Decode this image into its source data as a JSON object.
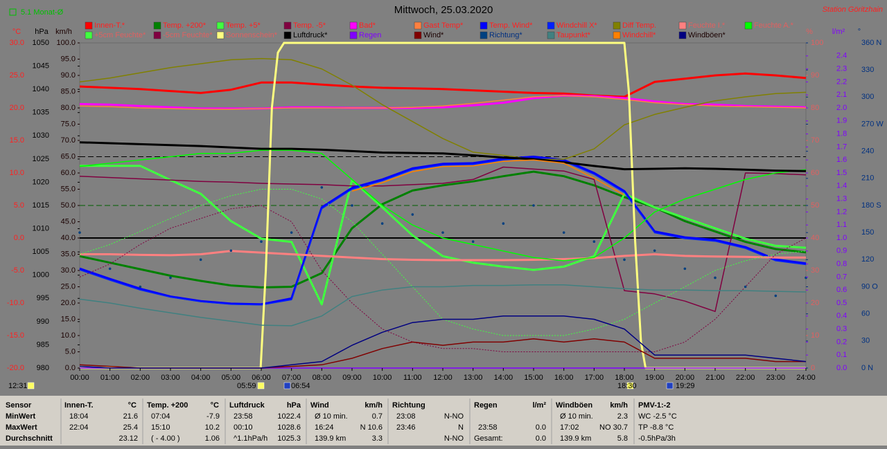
{
  "chart_data": {
    "type": "line",
    "title": "Mittwoch, 25.03.2020",
    "station": "Station Göritzhain",
    "period": "5.1 Monat-Ø",
    "x": [
      0,
      1,
      2,
      3,
      4,
      5,
      6,
      7,
      8,
      9,
      10,
      11,
      12,
      13,
      14,
      15,
      16,
      17,
      18,
      19,
      20,
      21,
      22,
      23,
      24
    ],
    "xlim": [
      0,
      24
    ],
    "xticks": [
      {
        "value": 0,
        "label": "00:00"
      },
      {
        "value": 1,
        "label": "01:00"
      },
      {
        "value": 2,
        "label": "02:00"
      },
      {
        "value": 3,
        "label": "03:00"
      },
      {
        "value": 4,
        "label": "04:00"
      },
      {
        "value": 5,
        "label": "05:00"
      },
      {
        "value": 6,
        "label": "06:00"
      },
      {
        "value": 7,
        "label": "07:00"
      },
      {
        "value": 8,
        "label": "08:00"
      },
      {
        "value": 9,
        "label": "09:00"
      },
      {
        "value": 10,
        "label": "10:00"
      },
      {
        "value": 11,
        "label": "11:00"
      },
      {
        "value": 12,
        "label": "12:00"
      },
      {
        "value": 13,
        "label": "13:00"
      },
      {
        "value": 14,
        "label": "14:00"
      },
      {
        "value": 15,
        "label": "15:00"
      },
      {
        "value": 16,
        "label": "16:00"
      },
      {
        "value": 17,
        "label": "17:00"
      },
      {
        "value": 18,
        "label": "18:00"
      },
      {
        "value": 19,
        "label": "19:00"
      },
      {
        "value": 20,
        "label": "20:00"
      },
      {
        "value": 21,
        "label": "21:00"
      },
      {
        "value": 22,
        "label": "22:00"
      },
      {
        "value": 23,
        "label": "23:00"
      },
      {
        "value": 24,
        "label": "24:00"
      }
    ],
    "axes": [
      {
        "unit": "°C",
        "color": "#ff2020",
        "lim": [
          -20,
          30
        ],
        "ticks": [
          {
            "value": 30,
            "label": "30.0"
          },
          {
            "value": 25,
            "label": "25.0"
          },
          {
            "value": 20,
            "label": "20.0"
          },
          {
            "value": 15,
            "label": "15.0"
          },
          {
            "value": 10,
            "label": "10.0"
          },
          {
            "value": 5,
            "label": "5.0"
          },
          {
            "value": 0,
            "label": "0.0"
          },
          {
            "value": -5,
            "label": "-5.0"
          },
          {
            "value": -10,
            "label": "-10.0"
          },
          {
            "value": -15,
            "label": "-15.0"
          },
          {
            "value": -20,
            "label": "-20.0"
          }
        ]
      },
      {
        "unit": "hPa",
        "color": "#000000",
        "lim": [
          980,
          1050
        ],
        "ticks": [
          1050,
          1045,
          1040,
          1035,
          1030,
          1025,
          1020,
          1015,
          1010,
          1005,
          1000,
          995,
          990,
          985,
          980
        ]
      },
      {
        "unit": "km/h",
        "color": "#1a0000",
        "lim": [
          0,
          100
        ],
        "ticks": [
          {
            "value": 100,
            "label": "100.0"
          },
          {
            "value": 95,
            "label": "95.0"
          },
          {
            "value": 90,
            "label": "90.0"
          },
          {
            "value": 85,
            "label": "85.0"
          },
          {
            "value": 80,
            "label": "80.0"
          },
          {
            "value": 75,
            "label": "75.0"
          },
          {
            "value": 70,
            "label": "70.0"
          },
          {
            "value": 65,
            "label": "65.0"
          },
          {
            "value": 60,
            "label": "60.0"
          },
          {
            "value": 55,
            "label": "55.0"
          },
          {
            "value": 50,
            "label": "50.0"
          },
          {
            "value": 45,
            "label": "45.0"
          },
          {
            "value": 40,
            "label": "40.0"
          },
          {
            "value": 35,
            "label": "35.0"
          },
          {
            "value": 30,
            "label": "30.0"
          },
          {
            "value": 25,
            "label": "25.0"
          },
          {
            "value": 20,
            "label": "20.0"
          },
          {
            "value": 15,
            "label": "15.0"
          },
          {
            "value": 10,
            "label": "10.0"
          },
          {
            "value": 5,
            "label": "5.0"
          },
          {
            "value": 0,
            "label": "0.0"
          }
        ]
      },
      {
        "unit": "%",
        "color": "#e06060",
        "lim": [
          0,
          100
        ],
        "ticks": [
          100,
          90,
          80,
          70,
          60,
          50,
          40,
          30,
          20,
          10,
          0
        ]
      },
      {
        "unit": "l/m²",
        "color": "#8000ff",
        "lim": [
          0,
          2.5
        ],
        "ticks": [
          2.4,
          2.3,
          2.2,
          2.1,
          {
            "value": 2,
            "label": "2.0"
          },
          1.9,
          1.8,
          1.7,
          1.6,
          1.5,
          1.4,
          1.3,
          1.2,
          1.1,
          {
            "value": 1,
            "label": "1.0"
          },
          0.9,
          0.8,
          0.7,
          0.6,
          0.5,
          0.4,
          0.3,
          0.2,
          0.1,
          {
            "value": 0,
            "label": "0.0"
          }
        ]
      },
      {
        "unit": "°",
        "color": "#003080",
        "lim": [
          0,
          360
        ],
        "ticks": [
          {
            "value": 360,
            "label": "360 N"
          },
          330,
          300,
          {
            "value": 270,
            "label": "270 W"
          },
          240,
          210,
          {
            "value": 180,
            "label": "180 S"
          },
          150,
          120,
          {
            "value": 90,
            "label": "90 O"
          },
          60,
          30,
          {
            "value": 0,
            "label": "0 N"
          }
        ]
      }
    ],
    "reference_lines": [
      {
        "axis": 0,
        "value": 0,
        "color": "#000000",
        "style": "solid"
      },
      {
        "axis": 2,
        "value": 65,
        "color": "#000000",
        "style": "dashed"
      },
      {
        "axis": 3,
        "value": 50,
        "color": "#006000",
        "style": "dashed"
      }
    ],
    "series": [
      {
        "name": "Innen-T.*",
        "color": "#ff0000",
        "axis": 0,
        "style": "thick",
        "values": [
          23.3,
          23.1,
          22.9,
          22.6,
          22.3,
          22.8,
          23.9,
          23.9,
          23.6,
          23.3,
          23.1,
          23.0,
          22.9,
          22.7,
          22.5,
          22.3,
          22.2,
          21.9,
          21.7,
          24.0,
          24.5,
          25.0,
          25.3,
          25.0,
          24.6
        ]
      },
      {
        "name": "Temp. +200*",
        "color": "#008000",
        "axis": 0,
        "style": "thick",
        "values": [
          -2.8,
          -3.8,
          -4.8,
          -5.8,
          -6.6,
          -7.3,
          -7.6,
          -7.5,
          -5.4,
          1.5,
          5.2,
          7.3,
          8.1,
          8.7,
          9.5,
          10.2,
          9.5,
          8.1,
          6.3,
          4.7,
          2.6,
          1.0,
          -0.6,
          -1.7,
          -2.2
        ]
      },
      {
        "name": "Temp. +5*",
        "color": "#40ff40",
        "axis": 0,
        "style": "thick",
        "values": [
          11.1,
          11.1,
          11.1,
          8.9,
          6.8,
          2.6,
          -0.1,
          -0.6,
          -10.2,
          8.9,
          4.7,
          0.4,
          -2.8,
          -3.8,
          -4.4,
          -4.9,
          -4.4,
          -2.8,
          6.8,
          4.7,
          3.1,
          1.5,
          -0.1,
          -1.2,
          -1.5
        ]
      },
      {
        "name": "Temp. -5*",
        "color": "#800040",
        "axis": 0,
        "style": "normal",
        "values": [
          9.5,
          9.3,
          9.1,
          8.9,
          8.7,
          8.6,
          8.4,
          8.3,
          8.2,
          8.0,
          8.0,
          8.2,
          8.4,
          9.0,
          10.9,
          10.6,
          10.3,
          9.0,
          -8.1,
          -8.6,
          -9.7,
          -11.3,
          10.0,
          9.9,
          9.7
        ]
      },
      {
        "name": "Bad*",
        "color": "#ff00ff",
        "axis": 0,
        "style": "thick",
        "values": [
          20.6,
          20.5,
          20.3,
          20.1,
          19.9,
          19.9,
          19.9,
          20.1,
          20.1,
          20.0,
          20.0,
          20.0,
          20.1,
          20.4,
          20.8,
          21.5,
          21.9,
          21.8,
          21.5,
          21.0,
          20.6,
          20.5,
          20.3,
          20.2,
          20.1
        ]
      },
      {
        "name": "Gast Temp*",
        "color": "#ff8040",
        "axis": 0,
        "style": "normal",
        "values": [
          20.3,
          20.2,
          20.0,
          19.9,
          19.8,
          19.8,
          19.9,
          20.0,
          20.0,
          20.0,
          20.0,
          20.1,
          20.3,
          20.7,
          21.2,
          21.7,
          21.9,
          21.7,
          21.3,
          20.8,
          20.5,
          20.3,
          20.2,
          20.1,
          20.0
        ]
      },
      {
        "name": "Temp. Wind*",
        "color": "#0000ff",
        "axis": 0,
        "style": "thick",
        "values": [
          -4.7,
          -6.3,
          -7.8,
          -9.0,
          -9.7,
          -10.1,
          -10.2,
          -9.3,
          4.7,
          7.7,
          9.0,
          10.7,
          11.4,
          11.5,
          12.2,
          12.5,
          12.0,
          10.0,
          7.2,
          1.0,
          0.1,
          -0.3,
          -1.4,
          -3.3,
          -3.9
        ]
      },
      {
        "name": "Windchill X*",
        "color": "#0020ff",
        "axis": 0,
        "style": "normal",
        "values": [
          -4.9,
          -6.5,
          -8.0,
          -9.1,
          -9.8,
          -10.2,
          -10.3,
          -9.5,
          4.5,
          7.5,
          8.8,
          10.5,
          11.2,
          11.3,
          12.0,
          12.3,
          11.8,
          9.8,
          7.0,
          0.8,
          -0.1,
          -0.5,
          -1.6,
          -3.5,
          -4.1
        ]
      },
      {
        "name": "Diff Temp.",
        "color": "#808000",
        "axis": 0,
        "style": "normal",
        "values": [
          24.0,
          24.6,
          25.4,
          26.2,
          26.8,
          27.4,
          27.6,
          27.4,
          26.0,
          23.5,
          20.5,
          17.9,
          15.3,
          13.2,
          12.7,
          12.1,
          12.1,
          13.7,
          17.4,
          19.0,
          20.1,
          21.1,
          21.7,
          22.2,
          22.4
        ]
      },
      {
        "name": "Feuchte I.*",
        "color": "#ff8080",
        "axis": 3,
        "style": "thick",
        "values": [
          35,
          35,
          34.8,
          34.7,
          35,
          36,
          35.5,
          35,
          34.5,
          34,
          33.5,
          33.3,
          33.2,
          33.2,
          33.2,
          33.3,
          33.5,
          33.8,
          34.5,
          35,
          34.5,
          34.3,
          34.2,
          34,
          34
        ]
      },
      {
        "name": "Feuchte A.*",
        "color": "#00ff00",
        "axis": 3,
        "style": "normal",
        "values": [
          62,
          63,
          64,
          65,
          66,
          66,
          67,
          67,
          66,
          58,
          50,
          44,
          40,
          38,
          36,
          34,
          33,
          34,
          40,
          48,
          52,
          55,
          58,
          60,
          61
        ]
      },
      {
        "name": "+5cm Feuchte*",
        "color": "#40ff40",
        "axis": 3,
        "style": "dotted",
        "values": [
          35,
          38,
          42,
          46,
          50,
          53,
          55,
          55,
          52,
          45,
          35,
          25,
          15,
          12,
          10,
          10,
          10,
          12,
          15,
          20,
          25,
          30,
          33,
          35,
          36
        ]
      },
      {
        "name": "-5cm Feuchte*",
        "color": "#800040",
        "axis": 3,
        "style": "dotted",
        "values": [
          28,
          32,
          38,
          43,
          46,
          49,
          50,
          45,
          30,
          20,
          12,
          8,
          6,
          6,
          5,
          5,
          5,
          5,
          5,
          5,
          8,
          15,
          25,
          35,
          40
        ]
      },
      {
        "name": "Sonnenschein*",
        "color": "#ffff80",
        "axis": 3,
        "style": "thick",
        "x": [
          0,
          5.98,
          6.15,
          6.35,
          6.55,
          6.75,
          18,
          18.15,
          18.35,
          18.55,
          18.7,
          24
        ],
        "values": [
          0,
          0,
          30,
          80,
          97,
          100,
          100,
          85,
          40,
          8,
          0,
          0
        ]
      },
      {
        "name": "Luftdruck*",
        "color": "#000000",
        "axis": 1,
        "style": "thick",
        "values": [
          1028.6,
          1028.4,
          1028.2,
          1028.0,
          1027.8,
          1027.5,
          1027.2,
          1027.2,
          1027.0,
          1026.7,
          1026.4,
          1026.3,
          1026.2,
          1025.8,
          1025.3,
          1025.0,
          1024.3,
          1023.5,
          1022.8,
          1022.9,
          1023.0,
          1022.9,
          1022.7,
          1022.5,
          1022.4
        ]
      },
      {
        "name": "Regen",
        "color": "#8000ff",
        "axis": 4,
        "style": "normal",
        "values": [
          0,
          0,
          0,
          0,
          0,
          0,
          0,
          0,
          0,
          0,
          0,
          0,
          0,
          0,
          0,
          0,
          0,
          0,
          0,
          0,
          0,
          0,
          0,
          0,
          0
        ]
      },
      {
        "name": "Wind*",
        "color": "#800000",
        "axis": 2,
        "style": "normal",
        "values": [
          1,
          0.5,
          0,
          0,
          0,
          0,
          0,
          0.5,
          1,
          3,
          6,
          8,
          7,
          8,
          8,
          9,
          8,
          9,
          8,
          3,
          3,
          3,
          3,
          2,
          2
        ]
      },
      {
        "name": "Richtung*",
        "color": "#004080",
        "axis": 5,
        "style": "dots",
        "values": [
          150,
          110,
          90,
          100,
          120,
          130,
          140,
          150,
          200,
          180,
          160,
          170,
          150,
          140,
          160,
          180,
          150,
          140,
          120,
          130,
          110,
          100,
          90,
          80,
          100
        ]
      },
      {
        "name": "Taupunkt*",
        "color": "#408080",
        "axis": 0,
        "style": "normal",
        "values": [
          -9.4,
          -10.0,
          -10.8,
          -11.5,
          -12.2,
          -12.8,
          -13.4,
          -13.5,
          -12.0,
          -9.0,
          -8.0,
          -7.5,
          -7.5,
          -7.3,
          -7.3,
          -7.2,
          -7.2,
          -7.5,
          -7.8,
          -8.0,
          -8.0,
          -8.1,
          -8.1,
          -8.2,
          -8.3
        ]
      },
      {
        "name": "Windchill*",
        "color": "#ff8000",
        "axis": 0,
        "style": "normal",
        "values": [
          null,
          null,
          null,
          null,
          null,
          null,
          null,
          null,
          null,
          7.2,
          8.5,
          10.2,
          11.0,
          11.1,
          11.8,
          12.0,
          11.5,
          9.2,
          6.6,
          null,
          null,
          null,
          null,
          null,
          null
        ]
      },
      {
        "name": "Windböen*",
        "color": "#000080",
        "axis": 2,
        "style": "normal",
        "values": [
          0.5,
          0,
          0,
          0,
          0,
          0,
          0,
          1,
          2,
          7,
          11,
          14,
          15,
          15,
          16,
          16,
          16,
          15,
          12,
          4,
          4,
          4,
          4,
          3,
          2
        ]
      }
    ],
    "time_markers": [
      "12:31",
      "05:59",
      "06:54",
      "18:30",
      "19:29"
    ]
  },
  "stats": {
    "headers": [
      "Sensor",
      "Innen-T.",
      "°C",
      "Temp. +200",
      "°C",
      "Luftdruck",
      "hPa",
      "Wind",
      "km/h",
      "Richtung",
      "Regen",
      "l/m²",
      "Windböen",
      "km/h",
      "PMV-1:-2"
    ],
    "rows": [
      [
        "MinWert",
        "18:04",
        "21.6",
        "07:04",
        "-7.9",
        "23:58",
        "1022.4",
        "Ø 10 min.",
        "0.7",
        "23:08",
        "N-NO",
        null,
        null,
        "Ø 10 min.",
        "2.3",
        "WC -2.5 °C"
      ],
      [
        "MaxWert",
        "22:04",
        "25.4",
        "15:10",
        "10.2",
        "00:10",
        "1028.6",
        "16:24",
        "N 10.6",
        "23:46",
        "N",
        "23:58",
        "0.0",
        "17:02",
        "NO 30.7",
        "TP -8.8 °C"
      ],
      [
        "Durchschnitt",
        null,
        "23.12",
        "( - 4.00 )",
        "1.06",
        "^1.1hPa/h",
        "1025.3",
        "139.9 km",
        "3.3",
        null,
        "N-NO",
        "Gesamt:",
        "0.0",
        "139.9 km",
        "5.8",
        "-0.5hPa/3h"
      ]
    ]
  }
}
